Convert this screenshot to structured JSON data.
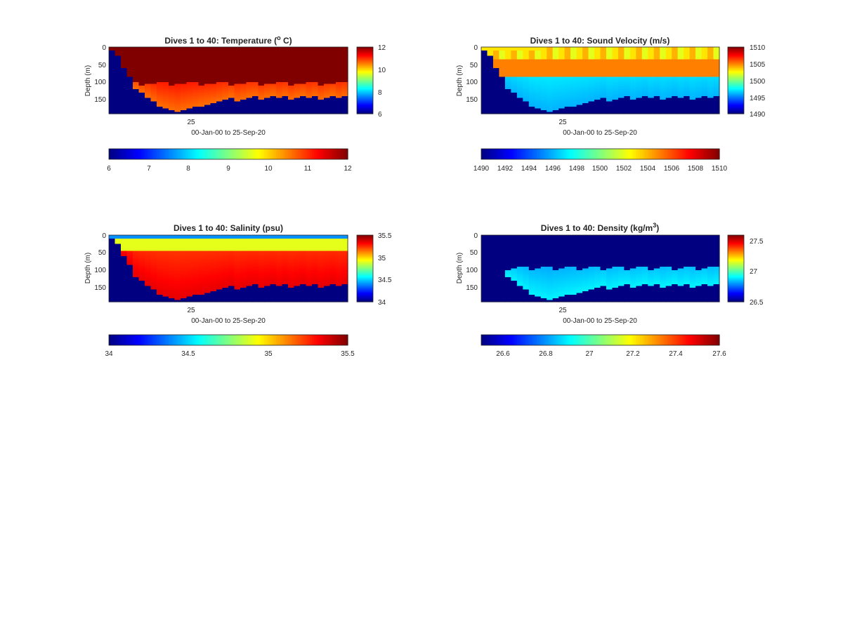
{
  "figure": {
    "background": "#ffffff"
  },
  "chart_data": [
    {
      "type": "heatmap",
      "title": "Dives 1 to 40: Temperature (",
      "title_sup": "o",
      "title_tail": " C)",
      "xlabel": "00-Jan-00 to 25-Sep-20",
      "ylabel": "Depth (m)",
      "ylim": [
        190,
        0
      ],
      "yticks": [
        "0",
        "50",
        "100",
        "150"
      ],
      "xticks": [
        "25"
      ],
      "x_range": [
        1,
        40
      ],
      "clim": [
        6,
        12
      ],
      "colorbar_ticks": [
        "12",
        "10",
        "8",
        "6"
      ],
      "colorbar_h_ticks": [
        "6",
        "7",
        "8",
        "9",
        "10",
        "11",
        "12"
      ],
      "colormap": "jet",
      "profiles": {
        "bottom_depth": 190,
        "bg_value": 6,
        "surface_value": 12,
        "deep_value": 10.8,
        "transition_depth": 120
      }
    },
    {
      "type": "heatmap",
      "title": "Dives 1 to 40: Sound Velocity (m/s)",
      "xlabel": "00-Jan-00 to 25-Sep-20",
      "ylabel": "Depth (m)",
      "ylim": [
        190,
        0
      ],
      "yticks": [
        "0",
        "50",
        "100",
        "150"
      ],
      "xticks": [
        "25"
      ],
      "x_range": [
        1,
        40
      ],
      "clim": [
        1490,
        1510
      ],
      "colorbar_ticks": [
        "1510",
        "1505",
        "1500",
        "1495",
        "1490"
      ],
      "colorbar_h_ticks": [
        "1490",
        "1492",
        "1494",
        "1496",
        "1498",
        "1500",
        "1502",
        "1504",
        "1506",
        "1508",
        "1510"
      ],
      "colormap": "jet",
      "profiles": {
        "bottom_depth": 190,
        "bg_value": 1490,
        "surface_value": 1503,
        "mid_value": 1504.5,
        "deep_value": 1498
      }
    },
    {
      "type": "heatmap",
      "title": "Dives 1 to 40: Salinity (psu)",
      "xlabel": "00-Jan-00 to 25-Sep-20",
      "ylabel": "Depth (m)",
      "ylim": [
        190,
        0
      ],
      "yticks": [
        "0",
        "50",
        "100",
        "150"
      ],
      "xticks": [
        "25"
      ],
      "x_range": [
        1,
        40
      ],
      "clim": [
        34,
        35.5
      ],
      "colorbar_ticks": [
        "35.5",
        "35",
        "34.5",
        "34"
      ],
      "colorbar_h_ticks": [
        "34",
        "34.5",
        "35",
        "35.5"
      ],
      "colormap": "jet",
      "profiles": {
        "bottom_depth": 190,
        "bg_value": 34,
        "surface_value": 34.6,
        "deep_value": 35.3
      }
    },
    {
      "type": "heatmap",
      "title": "Dives 1 to 40: Density (kg/m",
      "title_sup": "3",
      "title_tail": ")",
      "xlabel": "00-Jan-00 to 25-Sep-20",
      "ylabel": "Depth (m)",
      "ylim": [
        190,
        0
      ],
      "yticks": [
        "0",
        "50",
        "100",
        "150"
      ],
      "xticks": [
        "25"
      ],
      "x_range": [
        1,
        40
      ],
      "clim": [
        26.5,
        27.6
      ],
      "colorbar_ticks": [
        "27.5",
        "27",
        "26.5"
      ],
      "colorbar_h_ticks": [
        "26.6",
        "26.8",
        "27",
        "27.2",
        "27.4",
        "27.6"
      ],
      "colormap": "jet",
      "profiles": {
        "bottom_depth": 190,
        "bg_value": 26.5,
        "deep_value": 26.85,
        "transition_depth": 100
      }
    }
  ]
}
